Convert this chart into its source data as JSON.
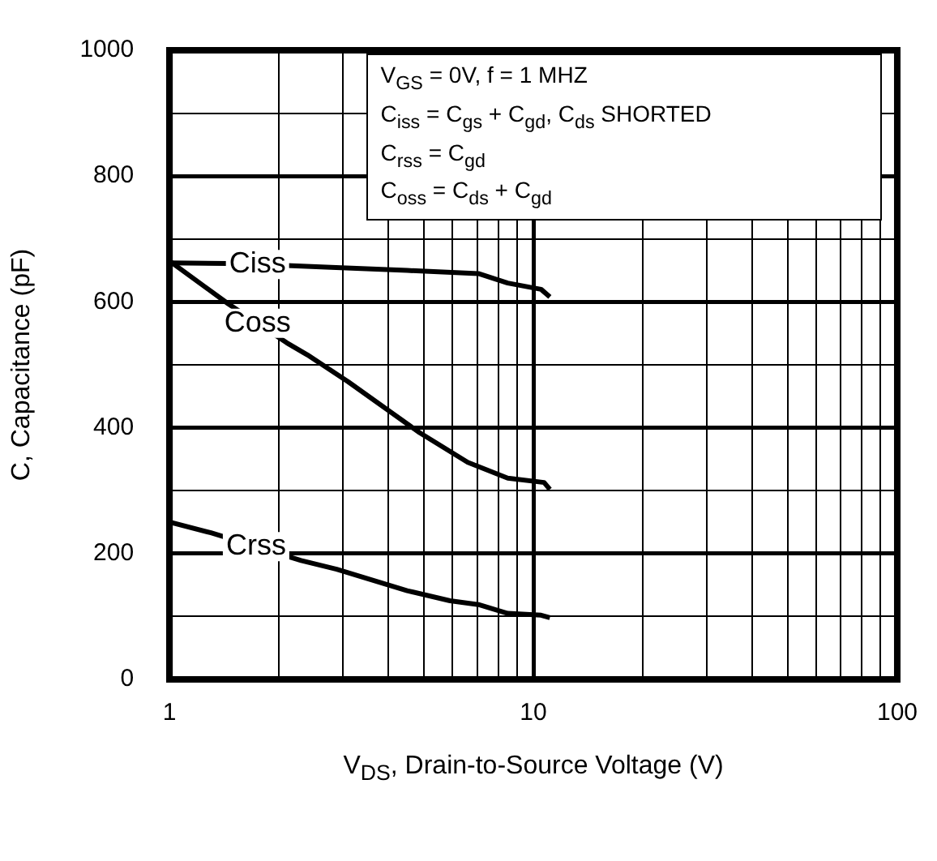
{
  "chart_data": {
    "type": "line",
    "xlabel": "V$_{DS}$, Drain-to-Source Voltage (V)",
    "ylabel": "C, Capacitance (pF)",
    "log": "x",
    "xlim": [
      1,
      100
    ],
    "ylim": [
      0,
      1000
    ],
    "xticks": [
      1,
      {
        "value": 2,
        "label": null
      },
      {
        "value": 3,
        "label": null
      },
      {
        "value": 4,
        "label": null
      },
      {
        "value": 5,
        "label": null
      },
      {
        "value": 6,
        "label": null
      },
      {
        "value": 7,
        "label": null
      },
      {
        "value": 8,
        "label": null
      },
      {
        "value": 9,
        "label": null
      },
      10,
      {
        "value": 20,
        "label": null
      },
      {
        "value": 30,
        "label": null
      },
      {
        "value": 40,
        "label": null
      },
      {
        "value": 50,
        "label": null
      },
      {
        "value": 60,
        "label": null
      },
      {
        "value": 70,
        "label": null
      },
      {
        "value": 80,
        "label": null
      },
      {
        "value": 90,
        "label": null
      },
      100
    ],
    "yticks": [
      0,
      {
        "value": 100,
        "label": null
      },
      200,
      {
        "value": 300,
        "label": null
      },
      400,
      {
        "value": 500,
        "label": null
      },
      600,
      {
        "value": 700,
        "label": null
      },
      800,
      {
        "value": 900,
        "label": null
      },
      1000
    ],
    "grid": true,
    "legend": false,
    "marker": "none",
    "line_style": "solid",
    "series": [
      {
        "name": "Ciss",
        "color": "#000000",
        "x": [
          1,
          1.45,
          2.1,
          2.78,
          4.5,
          7.06,
          8.5,
          10.5,
          11.1
        ],
        "values": [
          662,
          661,
          658,
          655,
          650,
          645,
          630,
          620,
          608
        ]
      },
      {
        "name": "Coss",
        "color": "#000000",
        "x": [
          1,
          1.45,
          2.1,
          2.39,
          3.1,
          4.87,
          6.6,
          8.5,
          10.7,
          11.1
        ],
        "values": [
          665,
          597,
          535,
          516,
          473,
          392,
          345,
          320,
          313,
          302
        ]
      },
      {
        "name": "Crss",
        "color": "#000000",
        "x": [
          1,
          1.3,
          2.3,
          2.88,
          4.5,
          5.9,
          7.06,
          8.5,
          10.5,
          11.1
        ],
        "values": [
          250,
          233,
          189,
          175,
          141,
          125,
          119,
          105,
          102,
          98
        ]
      }
    ],
    "annotations": [
      "V$_{GS}$ = 0V, f = 1 MHZ",
      "C$_{iss}$ = C$_{gs}$ + C$_{gd}$, C$_{ds}$ SHORTED",
      "C$_{rss}$ = C$_{gd}$",
      "C$_{oss}$ = C$_{ds}$ + C$_{gd}$"
    ]
  }
}
